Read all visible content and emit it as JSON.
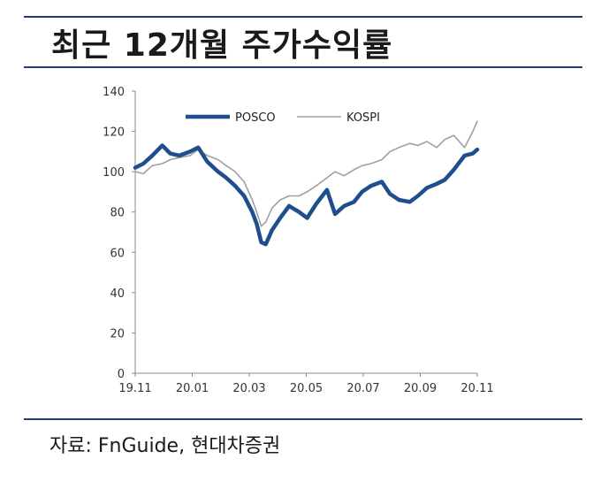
{
  "header": {
    "title": "최근 12개월 주가수익률"
  },
  "footer": {
    "source": "자료: FnGuide, 현대차증권"
  },
  "chart_data": {
    "type": "line",
    "xlabel": "",
    "ylabel": "",
    "ylim": [
      0,
      140
    ],
    "yticks": [
      0,
      20,
      40,
      60,
      80,
      100,
      120,
      140
    ],
    "xticks": [
      "19.11",
      "20.01",
      "20.03",
      "20.05",
      "20.07",
      "20.09",
      "20.11"
    ],
    "grid": false,
    "legend_position": "top-left",
    "x_range": [
      "2019-11-01",
      "2020-11-15"
    ],
    "series": [
      {
        "name": "POSCO",
        "color": "#1f4e8c",
        "x": [
          "2019-11-01",
          "2019-11-10",
          "2019-11-20",
          "2019-12-01",
          "2019-12-10",
          "2019-12-20",
          "2020-01-01",
          "2020-01-10",
          "2020-01-20",
          "2020-02-01",
          "2020-02-10",
          "2020-02-20",
          "2020-03-01",
          "2020-03-10",
          "2020-03-15",
          "2020-03-20",
          "2020-03-25",
          "2020-04-01",
          "2020-04-10",
          "2020-04-20",
          "2020-05-01",
          "2020-05-10",
          "2020-05-20",
          "2020-06-01",
          "2020-06-10",
          "2020-06-20",
          "2020-07-01",
          "2020-07-10",
          "2020-07-20",
          "2020-08-01",
          "2020-08-10",
          "2020-08-20",
          "2020-09-01",
          "2020-09-10",
          "2020-09-20",
          "2020-10-01",
          "2020-10-10",
          "2020-10-20",
          "2020-11-01",
          "2020-11-10",
          "2020-11-15"
        ],
        "values": [
          102,
          104,
          108,
          113,
          109,
          108,
          110,
          112,
          105,
          100,
          97,
          93,
          88,
          80,
          74,
          65,
          64,
          71,
          77,
          83,
          80,
          77,
          84,
          91,
          79,
          83,
          85,
          90,
          93,
          95,
          89,
          86,
          85,
          88,
          92,
          94,
          96,
          101,
          108,
          109,
          111
        ]
      },
      {
        "name": "KOSPI",
        "color": "#a0a0a0",
        "x": [
          "2019-11-01",
          "2019-11-10",
          "2019-11-20",
          "2019-12-01",
          "2019-12-10",
          "2019-12-20",
          "2020-01-01",
          "2020-01-10",
          "2020-01-20",
          "2020-02-01",
          "2020-02-10",
          "2020-02-20",
          "2020-03-01",
          "2020-03-10",
          "2020-03-15",
          "2020-03-20",
          "2020-03-25",
          "2020-04-01",
          "2020-04-10",
          "2020-04-20",
          "2020-05-01",
          "2020-05-10",
          "2020-05-20",
          "2020-06-01",
          "2020-06-10",
          "2020-06-20",
          "2020-07-01",
          "2020-07-10",
          "2020-07-20",
          "2020-08-01",
          "2020-08-10",
          "2020-08-20",
          "2020-09-01",
          "2020-09-10",
          "2020-09-20",
          "2020-10-01",
          "2020-10-10",
          "2020-10-20",
          "2020-11-01",
          "2020-11-10",
          "2020-11-15"
        ],
        "values": [
          100,
          99,
          103,
          104,
          106,
          107,
          108,
          111,
          108,
          106,
          103,
          100,
          95,
          86,
          80,
          73,
          75,
          82,
          86,
          88,
          88,
          90,
          93,
          97,
          100,
          98,
          101,
          103,
          104,
          106,
          110,
          112,
          114,
          113,
          115,
          112,
          116,
          118,
          112,
          120,
          125
        ]
      }
    ]
  }
}
